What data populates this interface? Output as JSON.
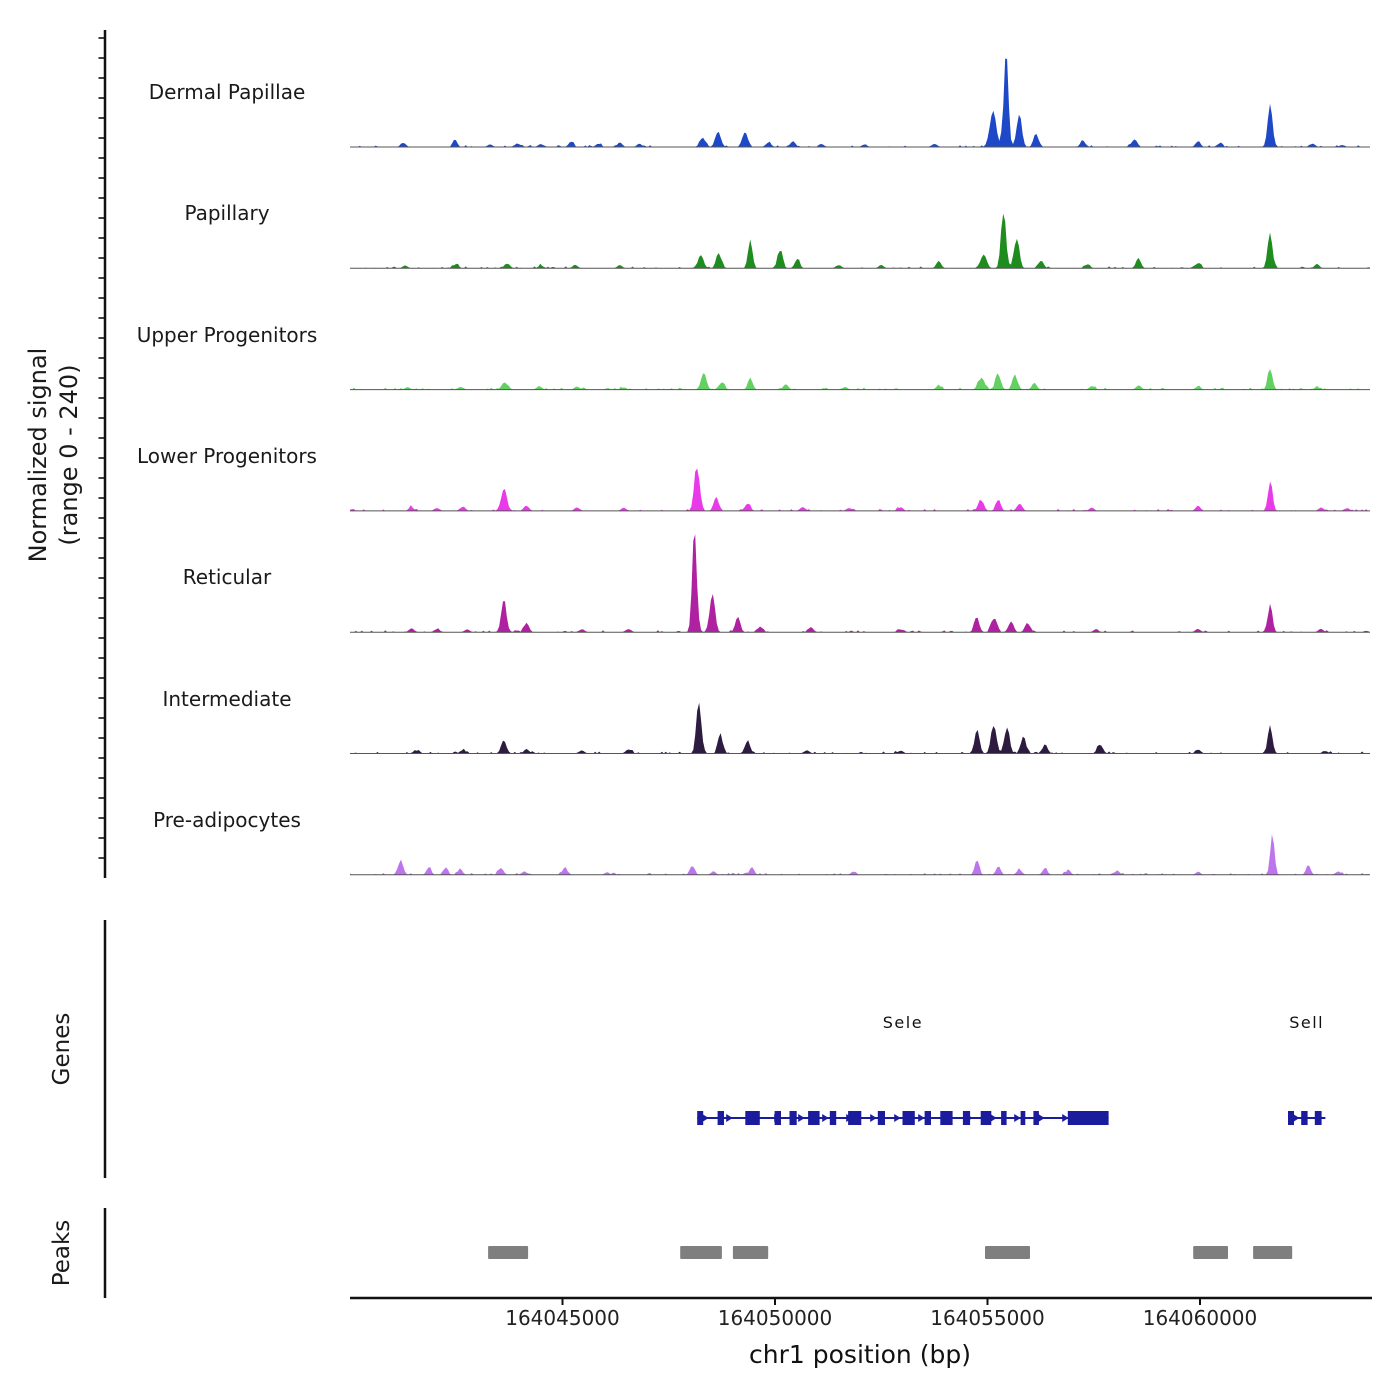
{
  "axes": {
    "y_label": "Normalized signal\n(range 0 - 240)",
    "x_label": "chr1 position (bp)"
  },
  "sections": {
    "genes": "Genes",
    "peaks": "Peaks"
  },
  "chart_data": {
    "type": "area",
    "subtype": "genome-browser-signal-tracks",
    "title": "",
    "xlabel": "chr1 position (bp)",
    "ylabel": "Normalized signal (range 0 - 240)",
    "signal_range": [
      0,
      240
    ],
    "x_range_bp": [
      164040000,
      164064000
    ],
    "x_ticks_bp": [
      164045000,
      164050000,
      164055000,
      164060000
    ],
    "tracks": [
      {
        "name": "Dermal Papillae",
        "color": "#1d49c8",
        "seed": 1,
        "peaks": [
          [
            164041250,
            10,
            60
          ],
          [
            164042480,
            16,
            50
          ],
          [
            164043300,
            6,
            60
          ],
          [
            164043950,
            10,
            60
          ],
          [
            164044500,
            8,
            60
          ],
          [
            164045200,
            12,
            60
          ],
          [
            164045850,
            8,
            60
          ],
          [
            164046350,
            10,
            60
          ],
          [
            164046800,
            8,
            60
          ],
          [
            164048300,
            20,
            70
          ],
          [
            164048660,
            50,
            60
          ],
          [
            164049290,
            48,
            60
          ],
          [
            164049850,
            14,
            60
          ],
          [
            164050420,
            16,
            60
          ],
          [
            164051100,
            8,
            60
          ],
          [
            164052100,
            6,
            60
          ],
          [
            164053750,
            10,
            60
          ],
          [
            164055120,
            110,
            70
          ],
          [
            164055430,
            240,
            55
          ],
          [
            164055740,
            95,
            60
          ],
          [
            164056150,
            35,
            60
          ],
          [
            164057250,
            16,
            60
          ],
          [
            164058450,
            22,
            60
          ],
          [
            164059950,
            12,
            60
          ],
          [
            164060450,
            8,
            60
          ],
          [
            164061650,
            100,
            60
          ],
          [
            164062650,
            10,
            60
          ],
          [
            164063350,
            6,
            60
          ]
        ]
      },
      {
        "name": "Papillary",
        "color": "#1f8c1f",
        "seed": 2,
        "peaks": [
          [
            164041300,
            8,
            60
          ],
          [
            164042500,
            10,
            60
          ],
          [
            164043700,
            14,
            60
          ],
          [
            164044500,
            8,
            60
          ],
          [
            164045300,
            10,
            60
          ],
          [
            164046350,
            8,
            60
          ],
          [
            164048250,
            32,
            70
          ],
          [
            164048680,
            42,
            60
          ],
          [
            164049420,
            60,
            55
          ],
          [
            164050120,
            55,
            55
          ],
          [
            164050520,
            22,
            60
          ],
          [
            164051500,
            10,
            60
          ],
          [
            164052500,
            8,
            60
          ],
          [
            164053850,
            16,
            60
          ],
          [
            164054900,
            40,
            70
          ],
          [
            164055380,
            175,
            55
          ],
          [
            164055680,
            85,
            60
          ],
          [
            164056250,
            22,
            60
          ],
          [
            164057350,
            12,
            60
          ],
          [
            164058550,
            26,
            60
          ],
          [
            164059950,
            15,
            60
          ],
          [
            164061650,
            78,
            60
          ],
          [
            164062750,
            10,
            60
          ]
        ]
      },
      {
        "name": "Upper Progenitors",
        "color": "#63d063",
        "seed": 3,
        "peaks": [
          [
            164041350,
            6,
            60
          ],
          [
            164042600,
            8,
            60
          ],
          [
            164043650,
            20,
            70
          ],
          [
            164044450,
            10,
            60
          ],
          [
            164045350,
            8,
            60
          ],
          [
            164046450,
            6,
            60
          ],
          [
            164048320,
            45,
            65
          ],
          [
            164048750,
            22,
            60
          ],
          [
            164049420,
            32,
            55
          ],
          [
            164050250,
            14,
            60
          ],
          [
            164051650,
            6,
            60
          ],
          [
            164053850,
            10,
            60
          ],
          [
            164054850,
            32,
            70
          ],
          [
            164055250,
            48,
            60
          ],
          [
            164055650,
            38,
            60
          ],
          [
            164056100,
            16,
            60
          ],
          [
            164057450,
            8,
            60
          ],
          [
            164058550,
            12,
            60
          ],
          [
            164059950,
            8,
            60
          ],
          [
            164061650,
            60,
            55
          ],
          [
            164062750,
            6,
            60
          ]
        ]
      },
      {
        "name": "Lower Progenitors",
        "color": "#e93ae9",
        "seed": 4,
        "peaks": [
          [
            164041450,
            10,
            60
          ],
          [
            164042050,
            8,
            60
          ],
          [
            164042650,
            12,
            60
          ],
          [
            164043620,
            60,
            70
          ],
          [
            164044150,
            16,
            60
          ],
          [
            164045350,
            10,
            60
          ],
          [
            164046450,
            8,
            60
          ],
          [
            164048160,
            135,
            60
          ],
          [
            164048620,
            38,
            60
          ],
          [
            164049350,
            22,
            60
          ],
          [
            164050650,
            12,
            60
          ],
          [
            164051750,
            8,
            60
          ],
          [
            164052950,
            10,
            60
          ],
          [
            164054850,
            32,
            60
          ],
          [
            164055250,
            26,
            60
          ],
          [
            164055750,
            22,
            60
          ],
          [
            164057450,
            8,
            60
          ],
          [
            164059950,
            12,
            60
          ],
          [
            164061650,
            70,
            55
          ],
          [
            164062850,
            10,
            60
          ],
          [
            164063450,
            8,
            60
          ]
        ]
      },
      {
        "name": "Reticular",
        "color": "#ae21a0",
        "seed": 5,
        "peaks": [
          [
            164041450,
            12,
            60
          ],
          [
            164042050,
            10,
            60
          ],
          [
            164042750,
            8,
            60
          ],
          [
            164043620,
            70,
            65
          ],
          [
            164044150,
            22,
            60
          ],
          [
            164045450,
            8,
            60
          ],
          [
            164046550,
            10,
            60
          ],
          [
            164048110,
            240,
            55
          ],
          [
            164048520,
            115,
            60
          ],
          [
            164049120,
            48,
            55
          ],
          [
            164049650,
            16,
            60
          ],
          [
            164050850,
            12,
            60
          ],
          [
            164052950,
            8,
            60
          ],
          [
            164054750,
            38,
            60
          ],
          [
            164055150,
            42,
            60
          ],
          [
            164055550,
            32,
            60
          ],
          [
            164055950,
            26,
            60
          ],
          [
            164057550,
            8,
            60
          ],
          [
            164059950,
            10,
            60
          ],
          [
            164061650,
            62,
            55
          ],
          [
            164062850,
            8,
            60
          ]
        ]
      },
      {
        "name": "Intermediate",
        "color": "#2d1b40",
        "seed": 6,
        "peaks": [
          [
            164041550,
            8,
            60
          ],
          [
            164042650,
            10,
            60
          ],
          [
            164043620,
            32,
            65
          ],
          [
            164044150,
            10,
            60
          ],
          [
            164045450,
            8,
            60
          ],
          [
            164046550,
            12,
            60
          ],
          [
            164048210,
            165,
            55
          ],
          [
            164048720,
            52,
            55
          ],
          [
            164049350,
            38,
            55
          ],
          [
            164050750,
            10,
            60
          ],
          [
            164052950,
            8,
            60
          ],
          [
            164054750,
            65,
            60
          ],
          [
            164055150,
            85,
            60
          ],
          [
            164055450,
            72,
            60
          ],
          [
            164055850,
            45,
            60
          ],
          [
            164056350,
            22,
            60
          ],
          [
            164057650,
            26,
            60
          ],
          [
            164059950,
            10,
            60
          ],
          [
            164061650,
            80,
            55
          ],
          [
            164062950,
            8,
            60
          ]
        ]
      },
      {
        "name": "Pre-adipocytes",
        "color": "#bd75ee",
        "seed": 7,
        "peaks": [
          [
            164041200,
            38,
            55
          ],
          [
            164041850,
            22,
            50
          ],
          [
            164042250,
            20,
            50
          ],
          [
            164042600,
            16,
            50
          ],
          [
            164043550,
            22,
            55
          ],
          [
            164044100,
            10,
            55
          ],
          [
            164045050,
            16,
            55
          ],
          [
            164046050,
            8,
            55
          ],
          [
            164048050,
            28,
            55
          ],
          [
            164048550,
            10,
            55
          ],
          [
            164049450,
            20,
            55
          ],
          [
            164051850,
            10,
            55
          ],
          [
            164054750,
            32,
            55
          ],
          [
            164055250,
            22,
            55
          ],
          [
            164055750,
            16,
            55
          ],
          [
            164056350,
            20,
            55
          ],
          [
            164056900,
            14,
            55
          ],
          [
            164058050,
            10,
            55
          ],
          [
            164059950,
            8,
            55
          ],
          [
            164061700,
            95,
            50
          ],
          [
            164062550,
            22,
            55
          ],
          [
            164063250,
            10,
            55
          ]
        ]
      }
    ],
    "genes": [
      {
        "name": "Sele",
        "strand": "+",
        "start": 164048170,
        "end": 164057850,
        "color": "#1b1b9e",
        "exons": [
          [
            164048170,
            140
          ],
          [
            164048650,
            150
          ],
          [
            164049300,
            340
          ],
          [
            164049990,
            150
          ],
          [
            164050340,
            170
          ],
          [
            164050780,
            270
          ],
          [
            164051290,
            150
          ],
          [
            164051720,
            310
          ],
          [
            164052420,
            170
          ],
          [
            164053000,
            290
          ],
          [
            164053520,
            150
          ],
          [
            164053890,
            290
          ],
          [
            164054420,
            170
          ],
          [
            164054840,
            250
          ],
          [
            164055320,
            130
          ],
          [
            164055780,
            110
          ],
          [
            164056080,
            130
          ],
          [
            164056890,
            960
          ]
        ]
      },
      {
        "name": "Sell",
        "strand": "+",
        "start": 164062070,
        "end": 164062950,
        "color": "#1b1b9e",
        "exons": [
          [
            164062070,
            140
          ],
          [
            164062380,
            150
          ],
          [
            164062700,
            160
          ]
        ]
      }
    ],
    "peak_regions": [
      [
        164043250,
        164044190
      ],
      [
        164047770,
        164048750
      ],
      [
        164049010,
        164049840
      ],
      [
        164054940,
        164056000
      ],
      [
        164059840,
        164060660
      ],
      [
        164061250,
        164062170
      ]
    ],
    "peak_color": "#7f7f7f"
  }
}
